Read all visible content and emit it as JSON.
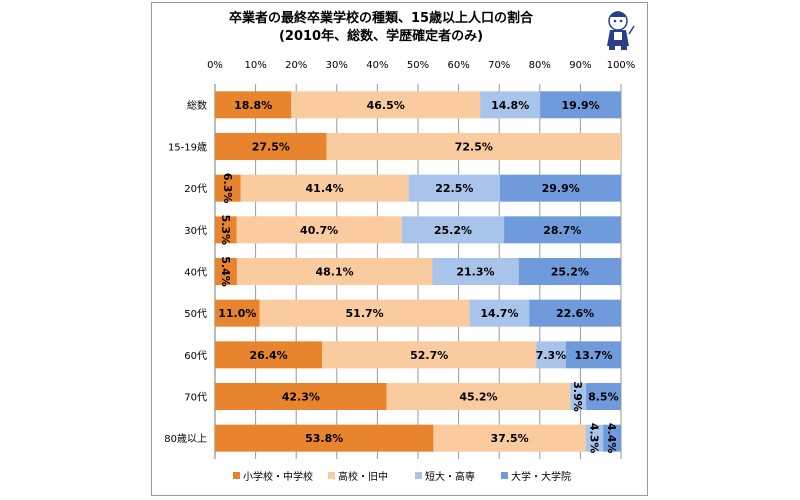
{
  "title": {
    "line1": "卒業者の最終卒業学校の種類、15歳以上人口の割合",
    "line2": "(2010年、総数、学歴確定者のみ)"
  },
  "colors": {
    "s0": "#E8842E",
    "s1": "#FBCBA0",
    "s2": "#A9C4EA",
    "s3": "#6F9BDC",
    "grid": "#9a9a9a"
  },
  "chart_data": {
    "type": "bar",
    "orientation": "horizontal",
    "stacked": true,
    "title": "卒業者の最終卒業学校の種類、15歳以上人口の割合 (2010年、総数、学歴確定者のみ)",
    "categories": [
      "総数",
      "15-19歳",
      "20代",
      "30代",
      "40代",
      "50代",
      "60代",
      "70代",
      "80歳以上"
    ],
    "series": [
      {
        "name": "小学校・中学校",
        "values": [
          18.8,
          27.5,
          6.3,
          5.3,
          5.4,
          11.0,
          26.4,
          42.3,
          53.8
        ]
      },
      {
        "name": "高校・旧中",
        "values": [
          46.5,
          72.5,
          41.4,
          40.7,
          48.1,
          51.7,
          52.7,
          45.2,
          37.5
        ]
      },
      {
        "name": "短大・高専",
        "values": [
          14.8,
          0,
          22.5,
          25.2,
          21.3,
          14.7,
          7.3,
          3.9,
          4.3
        ]
      },
      {
        "name": "大学・大学院",
        "values": [
          19.9,
          0,
          29.9,
          28.7,
          25.2,
          22.6,
          13.7,
          8.5,
          4.4
        ]
      }
    ],
    "labels": [
      [
        "18.8%",
        "46.5%",
        "14.8%",
        "19.9%"
      ],
      [
        "27.5%",
        "72.5%",
        "",
        ""
      ],
      [
        "6.3%",
        "41.4%",
        "22.5%",
        "29.9%"
      ],
      [
        "5.3%",
        "40.7%",
        "25.2%",
        "28.7%"
      ],
      [
        "5.4%",
        "48.1%",
        "21.3%",
        "25.2%"
      ],
      [
        "11.0%",
        "51.7%",
        "14.7%",
        "22.6%"
      ],
      [
        "26.4%",
        "52.7%",
        "7.3%",
        "13.7%"
      ],
      [
        "42.3%",
        "45.2%",
        "3.9%",
        "8.5%"
      ],
      [
        "53.8%",
        "37.5%",
        "4.3%",
        "4.4%"
      ]
    ],
    "x_ticks": [
      "0%",
      "10%",
      "20%",
      "30%",
      "40%",
      "50%",
      "60%",
      "70%",
      "80%",
      "90%",
      "100%"
    ],
    "xlim": [
      0,
      100
    ],
    "grid": true,
    "legend_position": "bottom"
  }
}
